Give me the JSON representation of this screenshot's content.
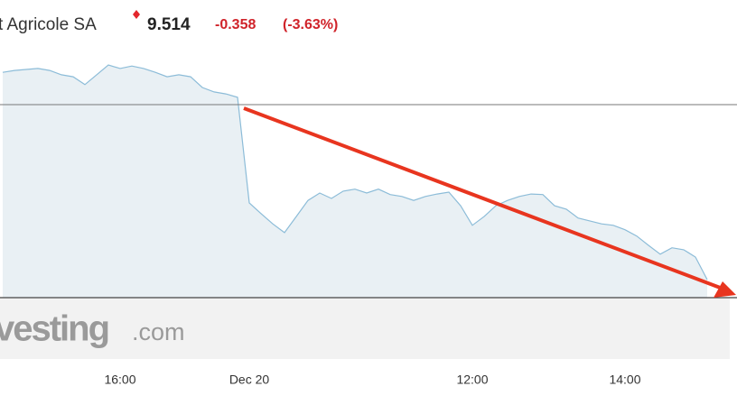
{
  "chart_data": {
    "type": "line",
    "title": "t Agricole SA",
    "price": "9.514",
    "change": "-0.358",
    "change_pct": "(-3.63%)",
    "watermark": [
      "vesting",
      ".com"
    ],
    "categories": [
      null,
      null,
      null,
      null,
      null,
      null,
      null,
      null,
      null,
      null,
      "16:00",
      null,
      null,
      null,
      null,
      null,
      null,
      null,
      null,
      null,
      null,
      "Dec 20",
      null,
      null,
      null,
      null,
      null,
      null,
      null,
      null,
      null,
      null,
      null,
      null,
      null,
      null,
      null,
      null,
      null,
      null,
      "12:00",
      null,
      null,
      null,
      null,
      null,
      null,
      null,
      null,
      null,
      null,
      null,
      null,
      "14:00",
      null,
      null,
      null,
      null,
      null,
      null,
      null
    ],
    "series": [
      {
        "color": "#8cbcd8",
        "values": [
          9.938,
          9.942,
          9.944,
          9.946,
          9.942,
          9.933,
          9.929,
          9.913,
          9.933,
          9.953,
          9.946,
          9.951,
          9.946,
          9.938,
          9.929,
          9.933,
          9.929,
          9.907,
          9.898,
          9.894,
          9.887,
          9.671,
          9.649,
          9.628,
          9.61,
          9.643,
          9.676,
          9.691,
          9.68,
          9.695,
          9.699,
          9.691,
          9.699,
          9.688,
          9.684,
          9.676,
          9.684,
          9.689,
          9.693,
          9.665,
          9.625,
          9.643,
          9.665,
          9.676,
          9.684,
          9.689,
          9.688,
          9.665,
          9.658,
          9.64,
          9.634,
          9.628,
          9.625,
          9.616,
          9.603,
          9.584,
          9.566,
          9.579,
          9.575,
          9.56,
          9.514
        ]
      }
    ],
    "reference_line": 9.872,
    "ylim": [
      9.477,
      10.003
    ]
  }
}
